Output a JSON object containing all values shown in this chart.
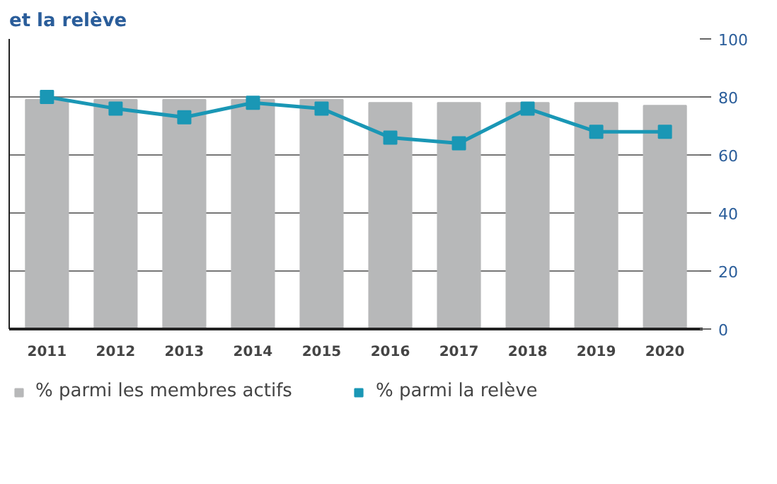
{
  "chart_data": {
    "type": "bar",
    "title": "et la relève",
    "categories": [
      "2011",
      "2012",
      "2013",
      "2014",
      "2015",
      "2016",
      "2017",
      "2018",
      "2019",
      "2020"
    ],
    "series": [
      {
        "name": "% parmi les membres actifs",
        "color": "#b7b8b9",
        "values": [
          79,
          79,
          79,
          79,
          79,
          78,
          78,
          78,
          78,
          77
        ]
      },
      {
        "name": "% parmi la relève",
        "type": "line",
        "color": "#1a97b5",
        "values": [
          80,
          76,
          73,
          78,
          76,
          66,
          64,
          76,
          68,
          68
        ]
      }
    ],
    "ylim": [
      0,
      100
    ],
    "yticks": [
      0,
      20,
      40,
      60,
      80,
      100
    ],
    "grid": "y",
    "legend": "bottom",
    "marker": "square"
  }
}
